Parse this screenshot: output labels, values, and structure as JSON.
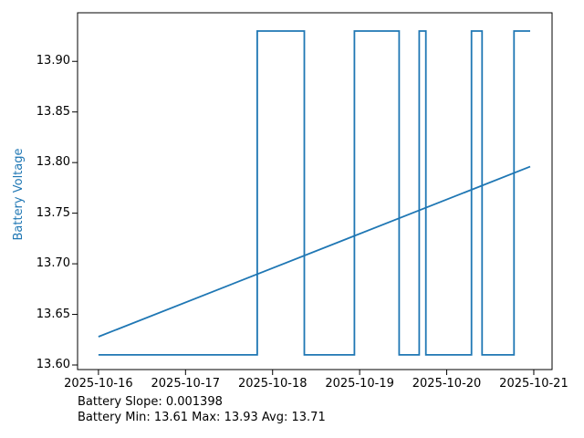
{
  "figure": {
    "background": "#ffffff"
  },
  "chart_data": {
    "type": "line",
    "title": "",
    "xlabel": "",
    "ylabel": "Battery Voltage",
    "ylabel_color": "#1f77b4",
    "axis_color": "#000000",
    "grid": false,
    "legend": "none",
    "x_unit_note": "days since 2025-10-16",
    "xlim": [
      -0.24,
      5.21
    ],
    "ylim": [
      13.5955,
      13.948
    ],
    "x_ticks": [
      {
        "value": 0,
        "label": "2025-10-16"
      },
      {
        "value": 1,
        "label": "2025-10-17"
      },
      {
        "value": 2,
        "label": "2025-10-18"
      },
      {
        "value": 3,
        "label": "2025-10-19"
      },
      {
        "value": 4,
        "label": "2025-10-20"
      },
      {
        "value": 5,
        "label": "2025-10-21"
      }
    ],
    "y_ticks": [
      {
        "value": 13.6,
        "label": "13.60"
      },
      {
        "value": 13.65,
        "label": "13.65"
      },
      {
        "value": 13.7,
        "label": "13.70"
      },
      {
        "value": 13.75,
        "label": "13.75"
      },
      {
        "value": 13.8,
        "label": "13.80"
      },
      {
        "value": 13.85,
        "label": "13.85"
      },
      {
        "value": 13.9,
        "label": "13.90"
      }
    ],
    "series": [
      {
        "name": "battery-voltage",
        "color": "#1f77b4",
        "points": [
          [
            0.0,
            13.61
          ],
          [
            1.824,
            13.61
          ],
          [
            1.824,
            13.93
          ],
          [
            2.364,
            13.93
          ],
          [
            2.364,
            13.61
          ],
          [
            2.94,
            13.61
          ],
          [
            2.94,
            13.93
          ],
          [
            3.453,
            13.93
          ],
          [
            3.453,
            13.61
          ],
          [
            3.684,
            13.61
          ],
          [
            3.684,
            13.93
          ],
          [
            3.761,
            13.93
          ],
          [
            3.761,
            13.61
          ],
          [
            4.285,
            13.61
          ],
          [
            4.285,
            13.93
          ],
          [
            4.406,
            13.93
          ],
          [
            4.406,
            13.61
          ],
          [
            4.773,
            13.61
          ],
          [
            4.773,
            13.93
          ],
          [
            4.958,
            13.93
          ]
        ]
      },
      {
        "name": "battery-trend",
        "color": "#1f77b4",
        "points": [
          [
            0.0,
            13.628
          ],
          [
            4.958,
            13.796
          ]
        ]
      }
    ],
    "annotations": {
      "slope": "Battery Slope: 0.001398",
      "stats": "Battery Min: 13.61 Max: 13.93 Avg: 13.71"
    },
    "stats": {
      "slope": 0.001398,
      "min": 13.61,
      "max": 13.93,
      "avg": 13.71
    }
  }
}
